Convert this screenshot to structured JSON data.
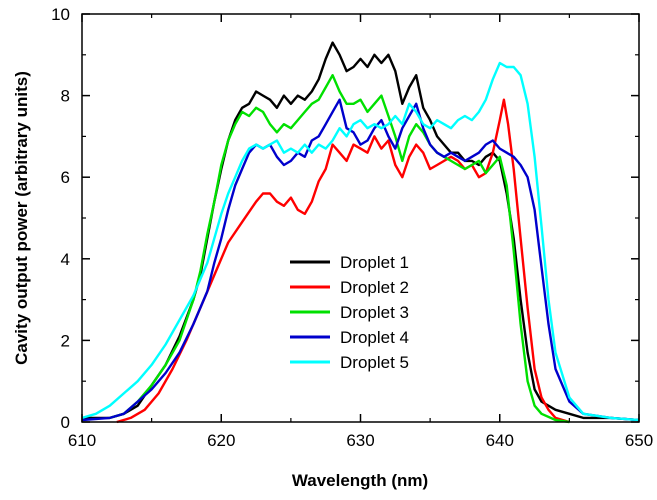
{
  "chart_data": {
    "type": "line",
    "title": "",
    "xlabel": "Wavelength (nm)",
    "ylabel": "Cavity output power (arbitrary units)",
    "xlim": [
      610,
      650
    ],
    "ylim": [
      0,
      10
    ],
    "xticks": [
      610,
      620,
      630,
      640,
      650
    ],
    "yticks": [
      0,
      2,
      4,
      6,
      8,
      10
    ],
    "grid": false,
    "legend_position": "center",
    "series": [
      {
        "name": "Droplet 1",
        "color": "#000000",
        "x": [
          610,
          612,
          613,
          614,
          615,
          616,
          617,
          618,
          618.5,
          619,
          619.5,
          620,
          620.5,
          621,
          621.5,
          622,
          622.5,
          623,
          623.5,
          624,
          624.5,
          625,
          625.5,
          626,
          626.5,
          627,
          627.5,
          628,
          628.5,
          629,
          629.5,
          630,
          630.5,
          631,
          631.5,
          632,
          632.5,
          633,
          633.5,
          634,
          634.5,
          635,
          635.5,
          636,
          636.5,
          637,
          637.5,
          638,
          638.5,
          639,
          639.5,
          640,
          640.5,
          641,
          641.5,
          642,
          642.5,
          643,
          644,
          645,
          646,
          648,
          650
        ],
        "y": [
          0.1,
          0.1,
          0.2,
          0.4,
          0.9,
          1.4,
          2.1,
          3.0,
          3.6,
          4.5,
          5.4,
          6.2,
          6.9,
          7.4,
          7.7,
          7.8,
          8.1,
          8.0,
          7.9,
          7.7,
          8.0,
          7.8,
          8.0,
          7.9,
          8.1,
          8.4,
          8.9,
          9.3,
          9.0,
          8.6,
          8.7,
          8.9,
          8.7,
          9.0,
          8.8,
          9.0,
          8.6,
          7.8,
          8.2,
          8.5,
          7.7,
          7.4,
          7.0,
          6.8,
          6.6,
          6.6,
          6.4,
          6.4,
          6.3,
          6.5,
          6.6,
          6.4,
          5.6,
          4.5,
          3.0,
          1.7,
          0.8,
          0.5,
          0.3,
          0.2,
          0.1,
          0.1,
          0.05
        ]
      },
      {
        "name": "Droplet 2",
        "color": "#ff0000",
        "x": [
          612.5,
          613.5,
          614.5,
          615.5,
          616.5,
          617.5,
          618.5,
          619.5,
          620.5,
          621.5,
          622.5,
          623,
          623.5,
          624,
          624.5,
          625,
          625.5,
          626,
          626.5,
          627,
          627.5,
          628,
          628.5,
          629,
          629.5,
          630,
          630.5,
          631,
          631.5,
          632,
          632.5,
          633,
          633.5,
          634,
          634.5,
          635,
          635.5,
          636,
          636.5,
          637,
          637.5,
          638,
          638.5,
          639,
          639.5,
          640,
          640.3,
          640.6,
          641,
          641.5,
          642,
          642.5,
          643,
          643.5,
          644,
          645
        ],
        "y": [
          0,
          0.1,
          0.3,
          0.7,
          1.3,
          2.0,
          2.8,
          3.6,
          4.4,
          4.9,
          5.4,
          5.6,
          5.6,
          5.4,
          5.3,
          5.5,
          5.2,
          5.1,
          5.4,
          5.9,
          6.2,
          6.8,
          6.6,
          6.4,
          6.8,
          6.7,
          6.6,
          7.0,
          6.7,
          6.9,
          6.3,
          6.0,
          6.5,
          6.8,
          6.6,
          6.2,
          6.3,
          6.4,
          6.5,
          6.4,
          6.2,
          6.3,
          6.0,
          6.1,
          6.6,
          7.4,
          7.9,
          7.3,
          6.2,
          4.5,
          2.8,
          1.3,
          0.6,
          0.3,
          0.1,
          0
        ]
      },
      {
        "name": "Droplet 3",
        "color": "#00e000",
        "x": [
          612,
          613,
          614,
          615,
          616,
          617,
          618,
          618.5,
          619,
          619.5,
          620,
          620.5,
          621,
          621.5,
          622,
          622.5,
          623,
          623.5,
          624,
          624.5,
          625,
          625.5,
          626,
          626.5,
          627,
          627.5,
          628,
          628.5,
          629,
          629.5,
          630,
          630.5,
          631,
          631.5,
          632,
          632.5,
          633,
          633.5,
          634,
          634.5,
          635,
          635.5,
          636,
          636.5,
          637,
          637.5,
          638,
          638.5,
          639,
          639.5,
          640,
          640.5,
          641,
          641.5,
          642,
          642.5,
          643,
          644,
          645
        ],
        "y": [
          0.1,
          0.2,
          0.5,
          0.9,
          1.4,
          2.0,
          3.0,
          3.7,
          4.6,
          5.4,
          6.3,
          6.9,
          7.3,
          7.6,
          7.5,
          7.7,
          7.6,
          7.3,
          7.1,
          7.3,
          7.2,
          7.4,
          7.6,
          7.8,
          7.9,
          8.2,
          8.5,
          8.1,
          7.8,
          7.8,
          7.9,
          7.6,
          7.8,
          8.0,
          7.5,
          7.0,
          6.4,
          7.0,
          7.3,
          7.1,
          6.8,
          6.6,
          6.5,
          6.4,
          6.3,
          6.2,
          6.3,
          6.4,
          6.1,
          6.3,
          6.5,
          5.8,
          4.2,
          2.4,
          1.0,
          0.4,
          0.2,
          0.05,
          0
        ]
      },
      {
        "name": "Droplet 4",
        "color": "#0000cc",
        "x": [
          610,
          612,
          613,
          614,
          615,
          616,
          617,
          618,
          619,
          619.5,
          620,
          620.5,
          621,
          621.5,
          622,
          622.5,
          623,
          623.5,
          624,
          624.5,
          625,
          625.5,
          626,
          626.5,
          627,
          627.5,
          628,
          628.5,
          629,
          629.5,
          630,
          630.5,
          631,
          631.5,
          632,
          632.5,
          633,
          633.5,
          634,
          634.5,
          635,
          635.5,
          636,
          636.5,
          637,
          637.5,
          638,
          638.5,
          639,
          639.5,
          640,
          640.5,
          641,
          641.5,
          642,
          642.5,
          643,
          643.5,
          644,
          645,
          646,
          648,
          650
        ],
        "y": [
          0.05,
          0.1,
          0.2,
          0.5,
          0.8,
          1.2,
          1.7,
          2.4,
          3.2,
          3.9,
          4.5,
          5.2,
          5.8,
          6.2,
          6.6,
          6.8,
          6.7,
          6.8,
          6.5,
          6.3,
          6.4,
          6.6,
          6.5,
          6.9,
          7.0,
          7.3,
          7.6,
          7.9,
          7.2,
          7.1,
          6.8,
          6.9,
          7.2,
          7.4,
          7.0,
          6.7,
          7.2,
          7.5,
          7.8,
          7.2,
          6.8,
          6.6,
          6.5,
          6.6,
          6.5,
          6.4,
          6.5,
          6.6,
          6.8,
          6.9,
          6.7,
          6.6,
          6.5,
          6.3,
          6.0,
          5.2,
          3.8,
          2.4,
          1.3,
          0.5,
          0.2,
          0.1,
          0.05
        ]
      },
      {
        "name": "Droplet 5",
        "color": "#00ffff",
        "x": [
          610,
          611,
          612,
          613,
          614,
          615,
          616,
          617,
          618,
          619,
          619.5,
          620,
          620.5,
          621,
          621.5,
          622,
          622.5,
          623,
          623.5,
          624,
          624.5,
          625,
          625.5,
          626,
          626.5,
          627,
          627.5,
          628,
          628.5,
          629,
          629.5,
          630,
          630.5,
          631,
          631.5,
          632,
          632.5,
          633,
          633.5,
          634,
          634.5,
          635,
          635.5,
          636,
          636.5,
          637,
          637.5,
          638,
          638.5,
          639,
          639.5,
          640,
          640.5,
          641,
          641.5,
          642,
          642.5,
          643,
          643.5,
          644,
          645,
          646,
          648,
          650
        ],
        "y": [
          0.1,
          0.2,
          0.4,
          0.7,
          1.0,
          1.4,
          1.9,
          2.5,
          3.1,
          3.9,
          4.5,
          5.1,
          5.6,
          6.0,
          6.4,
          6.7,
          6.8,
          6.7,
          6.8,
          6.9,
          6.6,
          6.7,
          6.6,
          6.8,
          6.6,
          6.8,
          6.7,
          6.9,
          7.2,
          7.0,
          7.3,
          7.4,
          7.2,
          7.3,
          7.2,
          7.3,
          7.5,
          7.3,
          7.8,
          7.6,
          7.3,
          7.2,
          7.4,
          7.3,
          7.2,
          7.4,
          7.5,
          7.4,
          7.6,
          7.9,
          8.4,
          8.8,
          8.7,
          8.7,
          8.5,
          7.8,
          6.5,
          4.8,
          3.0,
          1.7,
          0.6,
          0.2,
          0.1,
          0.05
        ]
      }
    ]
  }
}
